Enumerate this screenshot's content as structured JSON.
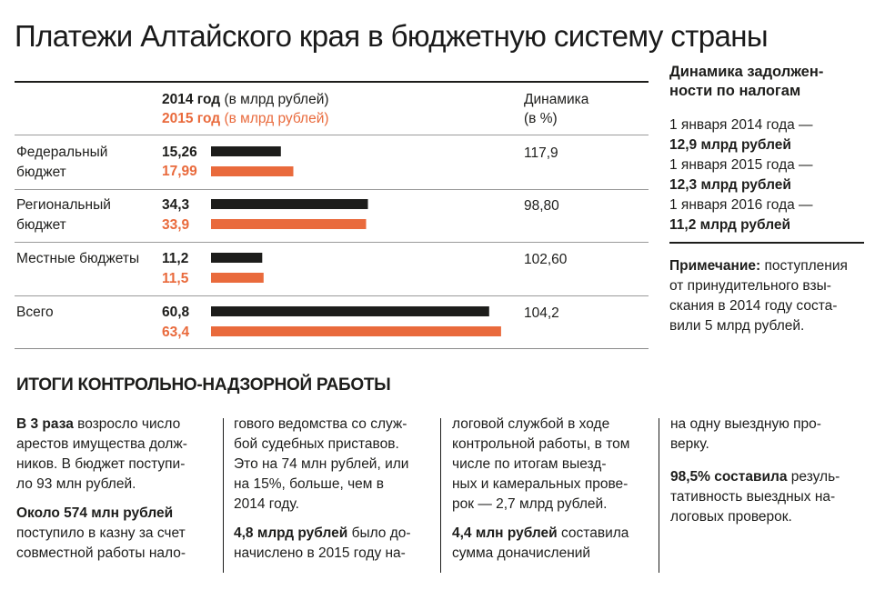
{
  "title": "Платежи Алтайского края в бюджетную систему страны",
  "chart_data": {
    "type": "bar",
    "orientation": "horizontal",
    "legend": {
      "year2014": "2014 год",
      "year2015": "2015 год",
      "unit": "(в млрд рублей)"
    },
    "dynamics_header": [
      "Динамика",
      "(в %)"
    ],
    "categories": [
      [
        "Федеральный",
        "бюджет"
      ],
      [
        "Региональный",
        "бюджет"
      ],
      [
        "Местные бюджеты"
      ],
      [
        "Всего"
      ]
    ],
    "series": [
      {
        "name": "2014 год",
        "values": [
          15.26,
          34.3,
          11.2,
          60.8
        ],
        "labels": [
          "15,26",
          "34,3",
          "11,2",
          "60,8"
        ]
      },
      {
        "name": "2015 год",
        "values": [
          17.99,
          33.9,
          11.5,
          63.4
        ],
        "labels": [
          "17,99",
          "33,9",
          "11,5",
          "63,4"
        ]
      }
    ],
    "dynamics": [
      "117,9",
      "98,80",
      "102,60",
      "104,2"
    ],
    "colors": {
      "2014": "#1d1d1b",
      "2015": "#e96a3c"
    }
  },
  "sidebar": {
    "title_lines": [
      "Динамика задолжен-",
      "ности по налогам"
    ],
    "entries": [
      {
        "date": "1 января 2014 года —",
        "value": "12,9 млрд рублей"
      },
      {
        "date": "1 января 2015 года —",
        "value": "12,3 млрд рублей"
      },
      {
        "date": "1 января 2016 года —",
        "value": "11,2 млрд рублей"
      }
    ],
    "note_label": "Примечание:",
    "note_lines": [
      " поступления",
      "от принудительного взы-",
      "скания в 2014 году соста-",
      "вили 5 млрд рублей."
    ]
  },
  "results": {
    "title": "ИТОГИ КОНТРОЛЬНО-НАДЗОРНОЙ РАБОТЫ",
    "columns": [
      {
        "paragraphs": [
          {
            "bold": "В 3 раза",
            "lines": [
              " возросло число",
              "арестов имущества долж-",
              "ников. В бюджет поступи-",
              "ло 93 млн рублей."
            ]
          },
          {
            "bold": "Около 574 млн рублей",
            "lines": [
              "",
              "поступило в казну за счет",
              "совместной работы нало-"
            ]
          }
        ]
      },
      {
        "paragraphs": [
          {
            "bold": "",
            "lines": [
              "гового ведомства со служ-",
              "бой судебных приставов.",
              "Это на 74 млн рублей, или",
              "на 15%, больше, чем в",
              "2014 году."
            ]
          },
          {
            "bold": "4,8 млрд рублей",
            "lines": [
              " было до-",
              "начислено в 2015 году на-"
            ]
          }
        ]
      },
      {
        "paragraphs": [
          {
            "bold": "",
            "lines": [
              "логовой службой в ходе",
              "контрольной работы, в том",
              "числе по итогам выезд-",
              "ных и камеральных прове-",
              "рок — 2,7 млрд рублей."
            ]
          },
          {
            "bold": "4,4 млн рублей",
            "lines": [
              " составила",
              "сумма доначислений"
            ]
          }
        ]
      },
      {
        "paragraphs": [
          {
            "bold": "",
            "lines": [
              "на одну выездную про-",
              "верку."
            ]
          },
          {
            "bold": "98,5% составила",
            "lines": [
              " резуль-",
              "тативность выездных на-",
              "логовых проверок."
            ]
          }
        ]
      }
    ]
  }
}
